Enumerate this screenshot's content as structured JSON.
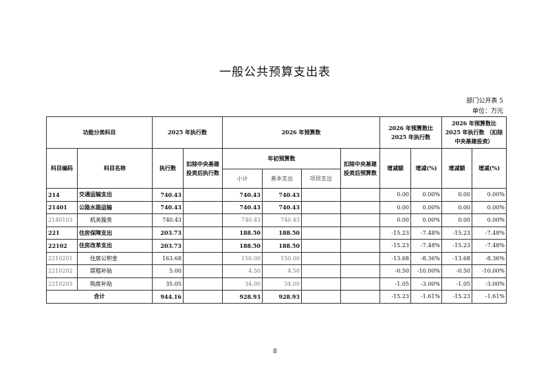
{
  "title": "一般公共预算支出表",
  "table_no": "部门公开表 5",
  "unit": "单位：万元",
  "page_number": "8",
  "headers": {
    "func_class": "功能分类科目",
    "exec_2025": "2025 年执行数",
    "budget_2026": "2026 年预算数",
    "cmp1": "2026 年预算数比 2025 年执行数",
    "cmp2": "2026 年预算数比 2025 年执行数 （扣除中央基建投资）",
    "code": "科目编码",
    "name": "科目名称",
    "exec": "执行数",
    "exec_excl": "扣除中央基建投资后执行数",
    "initial": "年初预算数",
    "budget_excl": "扣除中央基建投资后预算数",
    "change1": "增减额",
    "pct1": "增减(%)",
    "change2": "增减额",
    "pct2": "增减(%)",
    "subtotal": "小计",
    "basic": "基本支出",
    "project": "项目支出"
  },
  "rows": [
    {
      "code": "214",
      "name": "交通运输支出",
      "exec": "740.43",
      "sub": "740.43",
      "basic": "740.43",
      "chg1": "0.00",
      "pct1": "0.00%",
      "chg2": "0.00",
      "pct2": "0.00%"
    },
    {
      "code": "21401",
      "name": "公路水路运输",
      "exec": "740.43",
      "sub": "740.43",
      "basic": "740.43",
      "chg1": "0.00",
      "pct1": "0.00%",
      "chg2": "0.00",
      "pct2": "0.00%"
    },
    {
      "code": "2140103",
      "name": "机关服务",
      "exec": "740.43",
      "sub": "740.43",
      "basic": "740.43",
      "chg1": "0.00",
      "pct1": "0.00%",
      "chg2": "0.00",
      "pct2": "0.00%"
    },
    {
      "code": "221",
      "name": "住房保障支出",
      "exec": "203.73",
      "sub": "188.50",
      "basic": "188.50",
      "chg1": "-15.23",
      "pct1": "-7.48%",
      "chg2": "-15.23",
      "pct2": "-7.48%"
    },
    {
      "code": "22102",
      "name": "住房改革支出",
      "exec": "203.73",
      "sub": "188.50",
      "basic": "188.50",
      "chg1": "-15.23",
      "pct1": "-7.48%",
      "chg2": "-15.23",
      "pct2": "-7.48%"
    },
    {
      "code": "2210201",
      "name": "住房公积金",
      "exec": "163.68",
      "sub": "150.00",
      "basic": "150.00",
      "chg1": "-13.68",
      "pct1": "-8.36%",
      "chg2": "-13.68",
      "pct2": "-8.36%"
    },
    {
      "code": "2210202",
      "name": "提租补贴",
      "exec": "5.00",
      "sub": "4.50",
      "basic": "4.50",
      "chg1": "-0.50",
      "pct1": "-10.00%",
      "chg2": "-0.50",
      "pct2": "-10.00%"
    },
    {
      "code": "2210203",
      "name": "购房补贴",
      "exec": "35.05",
      "sub": "34.00",
      "basic": "34.00",
      "chg1": "-1.05",
      "pct1": "-3.00%",
      "chg2": "-1.05",
      "pct2": "-3.00%"
    }
  ],
  "total": {
    "label": "合计",
    "exec": "944.16",
    "sub": "928.93",
    "basic": "928.93",
    "chg1": "-15.23",
    "pct1": "-1.61%",
    "chg2": "-15.23",
    "pct2": "-1.61%"
  }
}
